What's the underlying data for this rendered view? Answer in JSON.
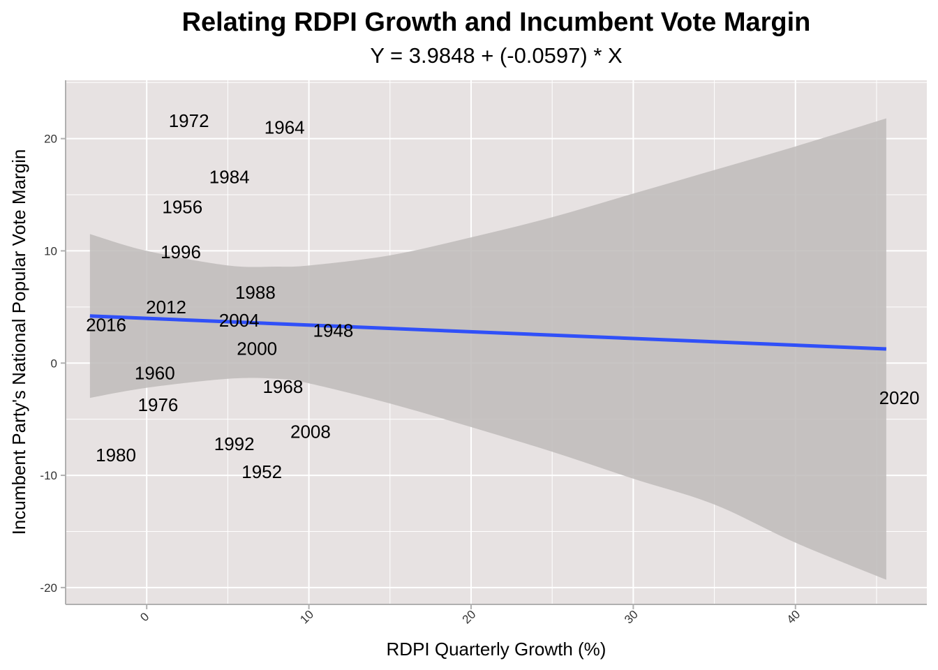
{
  "chart_data": {
    "type": "scatter",
    "title": "Relating RDPI Growth and Incumbent Vote Margin",
    "subtitle": "Y = 3.9848 + (-0.0597) * X",
    "xlabel": "RDPI Quarterly Growth (%)",
    "ylabel": "Incumbent Party's National Popular Vote Margin",
    "xlim": [
      -5,
      48.1
    ],
    "ylim": [
      -21.5,
      25.2
    ],
    "x_ticks": [
      0,
      10,
      20,
      30,
      40
    ],
    "x_tick_labels": [
      "0",
      "10",
      "20",
      "30",
      "40"
    ],
    "y_ticks": [
      -20,
      -10,
      0,
      10,
      20
    ],
    "y_tick_labels": [
      "-20",
      "-10",
      "0",
      "10",
      "20"
    ],
    "grid": true,
    "points": [
      {
        "label": "1972",
        "x": 2.6,
        "y": 21.6
      },
      {
        "label": "1964",
        "x": 8.5,
        "y": 21.0
      },
      {
        "label": "1984",
        "x": 5.1,
        "y": 16.6
      },
      {
        "label": "1956",
        "x": 2.2,
        "y": 13.9
      },
      {
        "label": "1996",
        "x": 2.1,
        "y": 9.9
      },
      {
        "label": "1988",
        "x": 6.7,
        "y": 6.3
      },
      {
        "label": "2012",
        "x": 1.2,
        "y": 5.0
      },
      {
        "label": "2016",
        "x": -2.5,
        "y": 3.4
      },
      {
        "label": "2004",
        "x": 5.7,
        "y": 3.8
      },
      {
        "label": "1948",
        "x": 11.5,
        "y": 2.9
      },
      {
        "label": "2000",
        "x": 6.8,
        "y": 1.3
      },
      {
        "label": "1960",
        "x": 0.5,
        "y": -0.9
      },
      {
        "label": "1968",
        "x": 8.4,
        "y": -2.1
      },
      {
        "label": "1976",
        "x": 0.7,
        "y": -3.7
      },
      {
        "label": "2020",
        "x": 46.4,
        "y": -3.1
      },
      {
        "label": "2008",
        "x": 10.1,
        "y": -6.1
      },
      {
        "label": "1992",
        "x": 5.4,
        "y": -7.2
      },
      {
        "label": "1980",
        "x": -1.9,
        "y": -8.2
      },
      {
        "label": "1952",
        "x": 7.1,
        "y": -9.7
      }
    ],
    "regression": {
      "intercept": 3.9848,
      "slope": -0.0597,
      "x_range": [
        -3.5,
        45.6
      ],
      "line_color": "#3050f8"
    },
    "confidence_band": [
      {
        "x": -3.5,
        "lower": -3.1,
        "upper": 11.5
      },
      {
        "x": 0,
        "lower": -2.2,
        "upper": 10.0
      },
      {
        "x": 5,
        "lower": -1.4,
        "upper": 8.7
      },
      {
        "x": 8,
        "lower": -1.4,
        "upper": 8.6
      },
      {
        "x": 10,
        "lower": -1.8,
        "upper": 8.7
      },
      {
        "x": 15,
        "lower": -3.6,
        "upper": 9.6
      },
      {
        "x": 20,
        "lower": -5.7,
        "upper": 11.2
      },
      {
        "x": 25,
        "lower": -7.9,
        "upper": 13.0
      },
      {
        "x": 30,
        "lower": -10.3,
        "upper": 15.1
      },
      {
        "x": 35,
        "lower": -12.6,
        "upper": 17.2
      },
      {
        "x": 40,
        "lower": -16.0,
        "upper": 19.3
      },
      {
        "x": 45.6,
        "lower": -19.3,
        "upper": 21.8
      }
    ],
    "colors": {
      "panel_background": "#e7e2e2",
      "grid": "#ffffff",
      "band": "#bebbba",
      "axis_line": "#b0b0b0"
    }
  }
}
